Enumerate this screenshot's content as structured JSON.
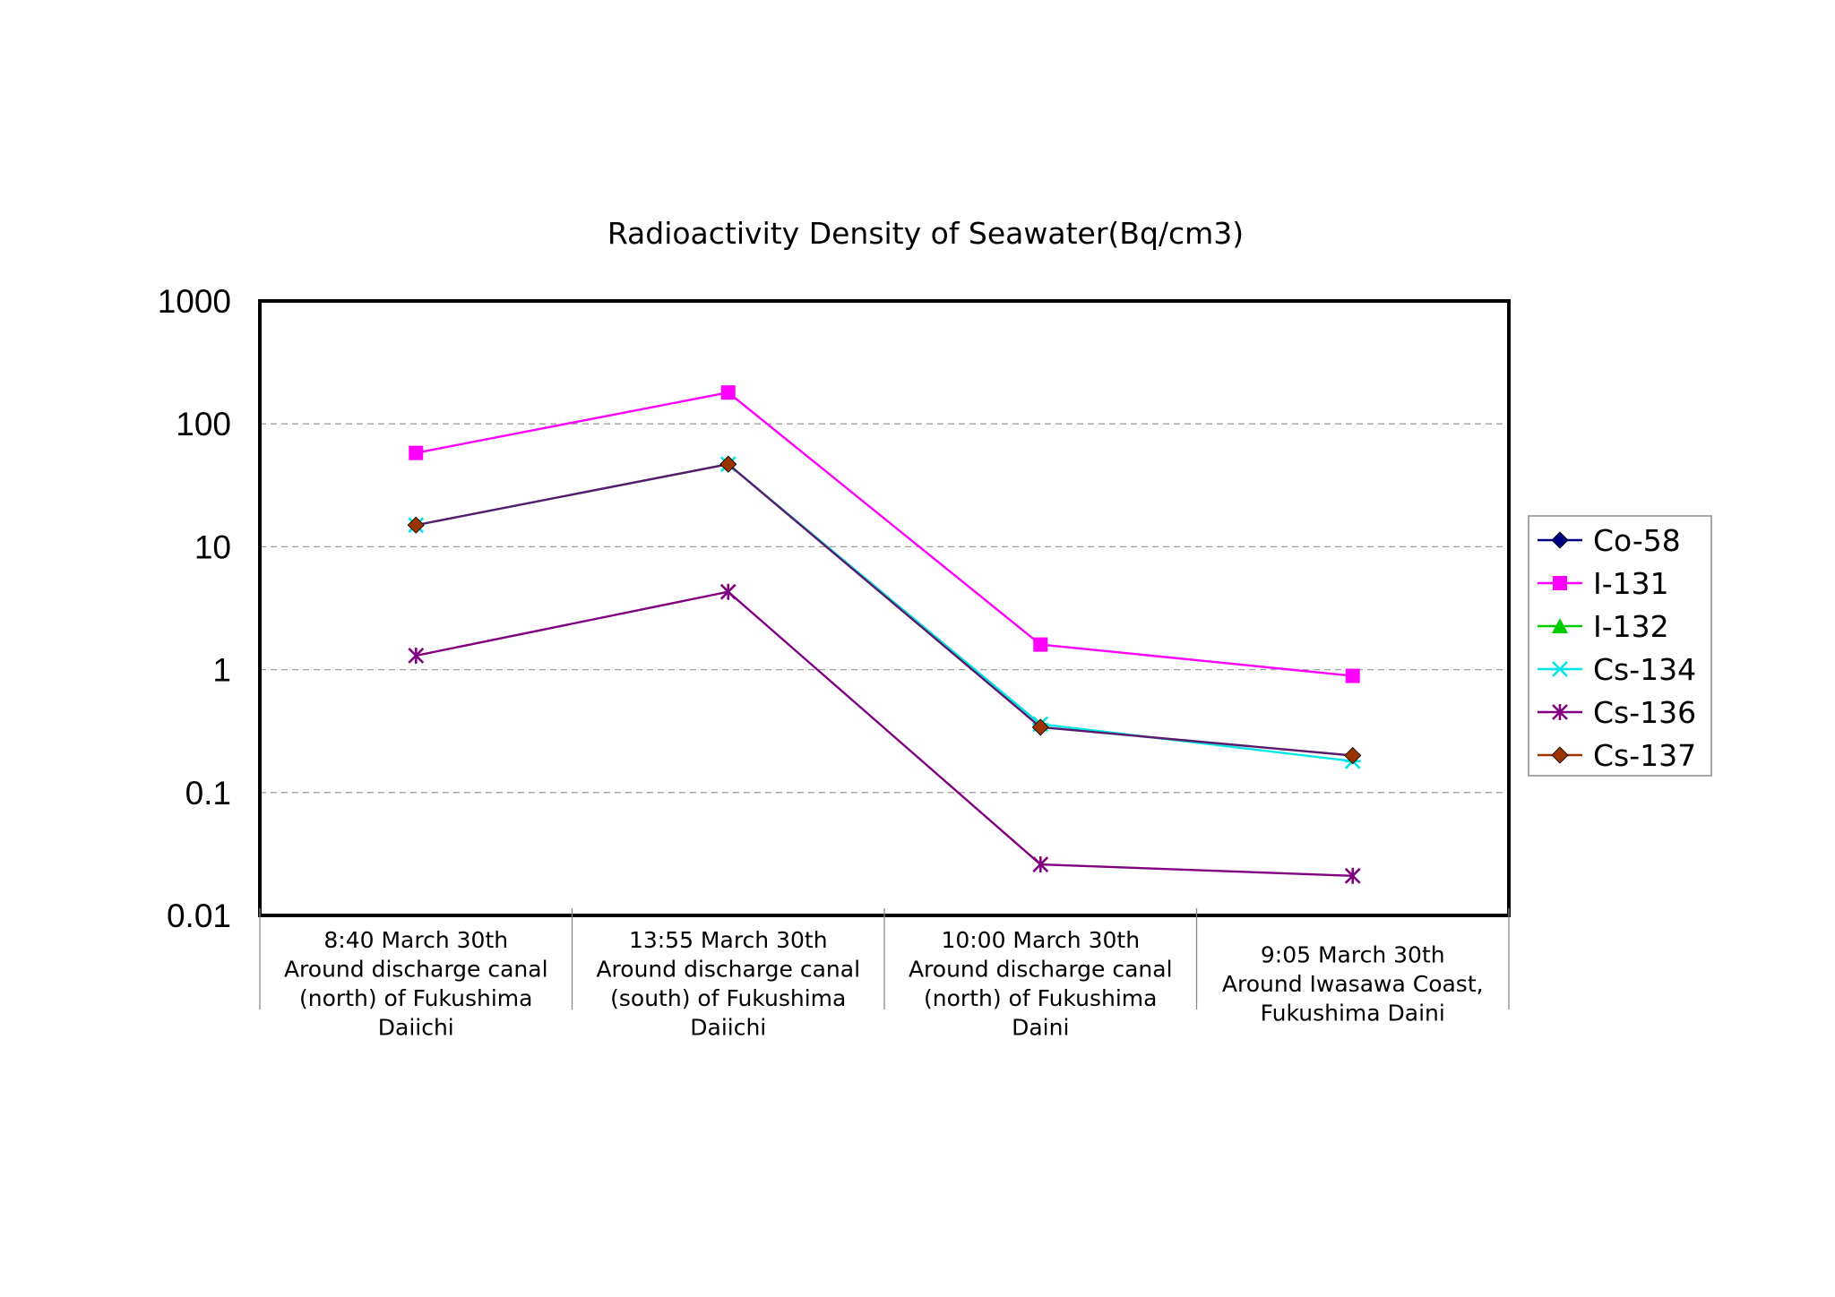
{
  "chart_data": {
    "type": "line",
    "title": "Radioactivity Density of Seawater(Bq/cm3)",
    "xlabel": "",
    "ylabel": "",
    "y_scale": "log",
    "ylim": [
      0.01,
      1000
    ],
    "y_ticks": [
      "1000",
      "100",
      "10",
      "1",
      "0.1",
      "0.01"
    ],
    "grid": "horizontal-dashed",
    "legend_position": "right",
    "categories": [
      [
        "8:40 March 30th",
        "Around discharge canal",
        "(north) of Fukushima",
        "Daiichi"
      ],
      [
        "13:55 March 30th",
        "Around discharge canal",
        "(south) of Fukushima",
        "Daiichi"
      ],
      [
        "10:00 March 30th",
        "Around discharge canal",
        "(north) of Fukushima",
        "Daini"
      ],
      [
        "9:05 March 30th",
        "Around Iwasawa Coast,",
        "Fukushima Daini"
      ]
    ],
    "series": [
      {
        "name": "Co-58",
        "color": "#000080",
        "marker": "diamond",
        "values": [
          null,
          null,
          null,
          null
        ]
      },
      {
        "name": "I-131",
        "color": "#ff00ff",
        "marker": "square",
        "values": [
          58,
          180,
          1.6,
          0.89
        ]
      },
      {
        "name": "I-132",
        "color": "#00cc00",
        "marker": "triangle",
        "values": [
          null,
          null,
          null,
          null
        ]
      },
      {
        "name": "Cs-134",
        "color": "#00e5e5",
        "marker": "asterisk",
        "values": [
          15,
          47,
          0.36,
          0.18
        ]
      },
      {
        "name": "Cs-136",
        "color": "#800080",
        "marker": "star",
        "values": [
          1.3,
          4.3,
          0.026,
          0.021
        ]
      },
      {
        "name": "Cs-137",
        "color": "#993300",
        "marker": "diamond",
        "values": [
          15,
          47,
          0.34,
          0.2
        ]
      }
    ]
  }
}
